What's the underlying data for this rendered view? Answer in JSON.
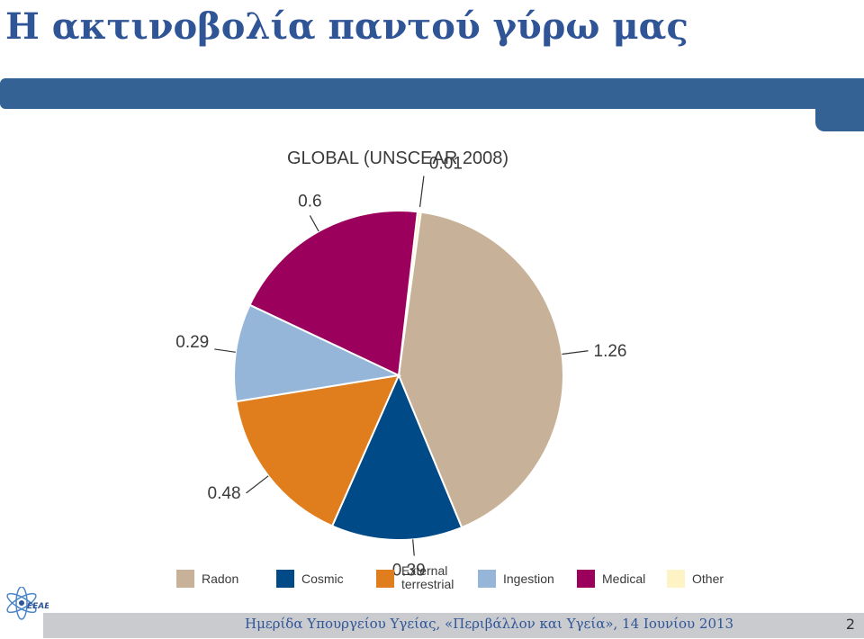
{
  "slide": {
    "title": "Η ακτινοβολία παντού γύρω μας",
    "footer": "Ημερίδα Υπουργείου Υγείας, «Περιβάλλον και Υγεία», 14 Ιουνίου 2013",
    "page_number": "2",
    "accent_color": "#356294",
    "logo_text": "ΕΕΑΕ"
  },
  "chart_data": {
    "type": "pie",
    "title": "GLOBAL (UNSCEAR 2008)",
    "start": "top, clockwise",
    "slices": [
      {
        "name": "Other",
        "value": 0.01,
        "label": "0.01",
        "color": "#fdf3c4"
      },
      {
        "name": "Radon",
        "value": 1.26,
        "label": "1.26",
        "color": "#c7b299"
      },
      {
        "name": "Cosmic",
        "value": 0.39,
        "label": "0.39",
        "color": "#004a87"
      },
      {
        "name": "External terrestrial",
        "value": 0.48,
        "label": "0.48",
        "color": "#e07e1d"
      },
      {
        "name": "Ingestion",
        "value": 0.29,
        "label": "0.29",
        "color": "#96b6d9"
      },
      {
        "name": "Medical",
        "value": 0.6,
        "label": "0.6",
        "color": "#9c005d"
      }
    ],
    "legend": {
      "placement": "bottom",
      "items": [
        {
          "label": "Radon",
          "color": "#c7b299"
        },
        {
          "label": "Cosmic",
          "color": "#004a87"
        },
        {
          "label": "External terrestrial",
          "color": "#e07e1d"
        },
        {
          "label": "Ingestion",
          "color": "#96b6d9"
        },
        {
          "label": "Medical",
          "color": "#9c005d"
        },
        {
          "label": "Other",
          "color": "#fdf3c4"
        }
      ]
    }
  }
}
